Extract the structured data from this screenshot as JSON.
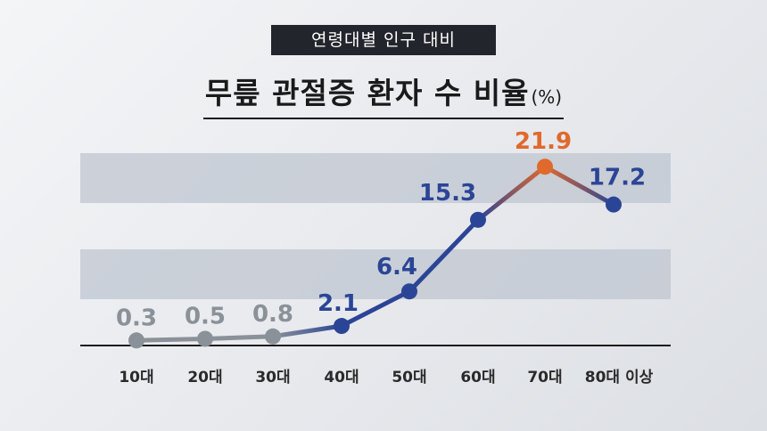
{
  "header": {
    "subtitle": "연령대별 인구 대비",
    "title": "무릎 관절증 환자 수 비율",
    "unit": "(%)"
  },
  "chart_data": {
    "type": "line",
    "title": "무릎 관절증 환자 수 비율",
    "subtitle": "연령대별 인구 대비",
    "unit": "(%)",
    "categories": [
      "10대",
      "20대",
      "30대",
      "40대",
      "50대",
      "60대",
      "70대",
      "80대 이상"
    ],
    "values": [
      0.3,
      0.5,
      0.8,
      2.1,
      6.4,
      15.3,
      21.9,
      17.2
    ],
    "value_labels": [
      "0.3",
      "0.5",
      "0.8",
      "2.1",
      "6.4",
      "15.3",
      "21.9",
      "17.2"
    ],
    "ylim": [
      0,
      25
    ],
    "grid": false,
    "colors": {
      "gray": "#8a9198",
      "blue": "#2b4596",
      "orange": "#e0692c",
      "band": "#bfc5d0"
    },
    "highlight_index": 6
  }
}
